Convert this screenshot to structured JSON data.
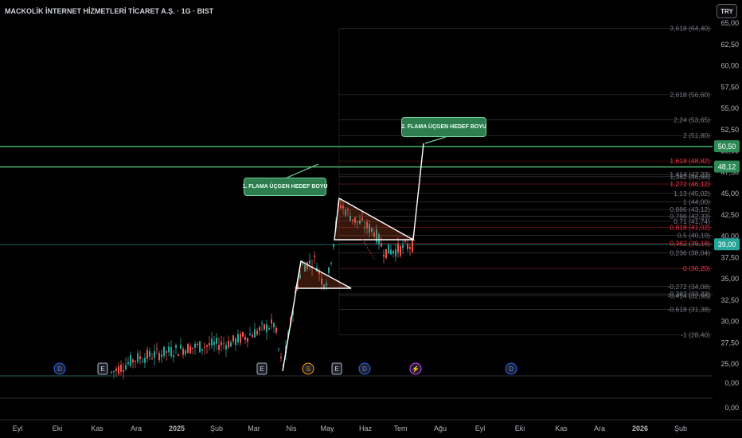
{
  "header": {
    "title": "MACKOLİK İNTERNET HİZMETLERİ TİCARET A.Ş. · 1G · BIST",
    "currency_button": "TRY"
  },
  "annotations": {
    "flag1_label": "1. FLAMA ÜÇGEN HEDEF BOYU",
    "flag2_label": "2. FLAMA ÜÇGEN HEDEF BOYU"
  },
  "colors": {
    "up": "#26a69a",
    "down": "#ef5350",
    "horizontal_line": "#4caf6e",
    "fib_grey": "#787b86",
    "fib_red": "#f23645"
  },
  "chart_data": {
    "type": "candlestick",
    "title": "MACKOLİK İNTERNET HİZMETLERİ TİCARET A.Ş. · 1G · BIST",
    "currency": "TRY",
    "y_ticks": [
      "65,00",
      "62,50",
      "60,00",
      "57,50",
      "55,00",
      "52,50",
      "50,00",
      "47,50",
      "45,00",
      "42,50",
      "40,00",
      "37,50",
      "35,00",
      "32,50",
      "30,00",
      "27,50",
      "25,00"
    ],
    "lower_ticks": [
      "0,00",
      "0,00"
    ],
    "x_ticks": [
      "Eyl",
      "Eki",
      "Kas",
      "Ara",
      "2025",
      "Şub",
      "Mar",
      "Nis",
      "May",
      "Haz",
      "Tem",
      "Ağu",
      "Eyl",
      "Eki",
      "Kas",
      "Ara",
      "2026",
      "Şub"
    ],
    "last_price": "39,00",
    "horizontal_levels": [
      {
        "label": "50,50"
      },
      {
        "label": "48,12"
      }
    ],
    "fibonacci": [
      {
        "label": "3,618 (64,40)",
        "color": "grey"
      },
      {
        "label": "2,618 (56,60)",
        "color": "grey"
      },
      {
        "label": "2,24 (53,65)",
        "color": "grey"
      },
      {
        "label": "2 (51,80)",
        "color": "grey"
      },
      {
        "label": "1,618 (48,82)",
        "color": "red"
      },
      {
        "label": "1,414 (47,23)",
        "color": "grey"
      },
      {
        "label": "1,382 (46,98)",
        "color": "grey"
      },
      {
        "label": "1,272 (46,12)",
        "color": "red"
      },
      {
        "label": "1,13 (45,02)",
        "color": "grey"
      },
      {
        "label": "1 (44,00)",
        "color": "grey"
      },
      {
        "label": "0,886 (43,12)",
        "color": "grey"
      },
      {
        "label": "0,786 (42,33)",
        "color": "grey"
      },
      {
        "label": "0,71 (41,74)",
        "color": "grey"
      },
      {
        "label": "0,618 (41,02)",
        "color": "red"
      },
      {
        "label": "0,5 (40,10)",
        "color": "grey"
      },
      {
        "label": "0,382 (39,18)",
        "color": "red"
      },
      {
        "label": "0,236 (38,04)",
        "color": "grey"
      },
      {
        "label": "0 (36,20)",
        "color": "red"
      },
      {
        "label": "-0,272 (34,08)",
        "color": "grey"
      },
      {
        "label": "-0,382 (33,22)",
        "color": "grey"
      },
      {
        "label": "-0,414 (32,98)",
        "color": "grey"
      },
      {
        "label": "-0,618 (31,38)",
        "color": "grey"
      },
      {
        "label": "-1 (28,40)",
        "color": "grey"
      }
    ],
    "event_markers": [
      {
        "letter": "D",
        "kind": "dividend"
      },
      {
        "letter": "E",
        "kind": "earnings"
      },
      {
        "letter": "E",
        "kind": "earnings"
      },
      {
        "letter": "S",
        "kind": "split"
      },
      {
        "letter": "E",
        "kind": "earnings"
      },
      {
        "letter": "D",
        "kind": "dividend"
      },
      {
        "letter": "⚡",
        "kind": "news"
      },
      {
        "letter": "D",
        "kind": "dividend"
      }
    ]
  }
}
